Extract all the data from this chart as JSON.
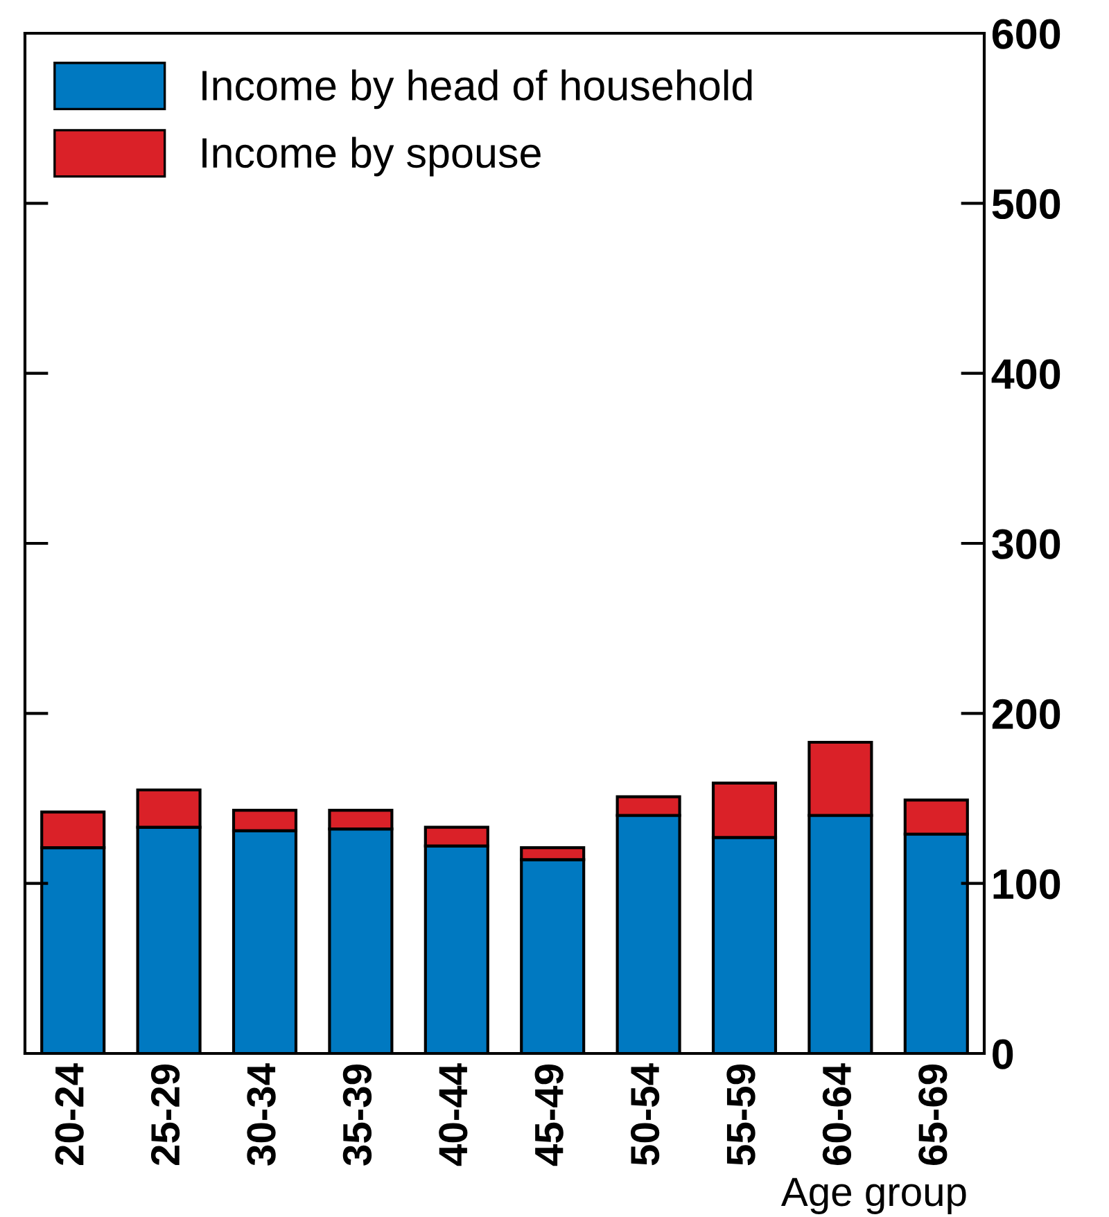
{
  "chart_data": {
    "type": "bar",
    "stacked": true,
    "xlabel": "Age group",
    "categories": [
      "20-24",
      "25-29",
      "30-34",
      "35-39",
      "40-44",
      "45-49",
      "50-54",
      "55-59",
      "60-64",
      "65-69"
    ],
    "series": [
      {
        "name": "Income by head of household",
        "color": "#0079c1",
        "values": [
          121,
          133,
          131,
          132,
          122,
          114,
          140,
          127,
          140,
          129
        ]
      },
      {
        "name": "Income by spouse",
        "color": "#da2128",
        "values": [
          21,
          22,
          12,
          11,
          11,
          7,
          11,
          32,
          43,
          20
        ]
      }
    ],
    "ylim": [
      0,
      600
    ],
    "yticks": [
      0,
      100,
      200,
      300,
      400,
      500,
      600
    ],
    "legend": "top left",
    "grid": false
  }
}
